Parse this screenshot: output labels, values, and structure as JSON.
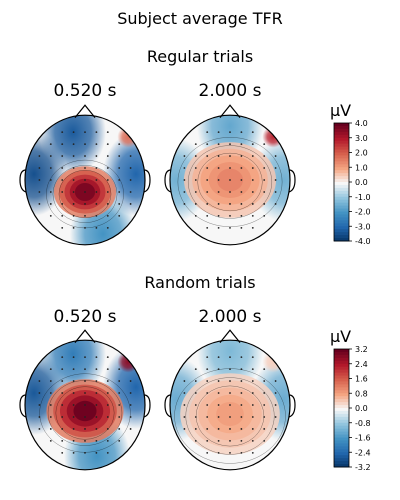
{
  "figure": {
    "title": "Subject average TFR"
  },
  "chart_data": [
    {
      "type": "heatmap",
      "subtitle": "Regular trials",
      "panels": [
        {
          "label": "0.520 s",
          "hot": {
            "x": 0.0,
            "y": 0.2,
            "r": 0.35,
            "v": 3.8
          },
          "cold": [
            {
              "x": -0.85,
              "y": -0.1,
              "v": -3.4
            },
            {
              "x": 0.85,
              "y": -0.1,
              "v": -3.0
            },
            {
              "x": -0.2,
              "y": -0.8,
              "v": -3.2
            },
            {
              "x": 0.3,
              "y": 0.9,
              "v": -2.0
            }
          ],
          "warm_right_front": 1.8
        },
        {
          "label": "2.000 s",
          "hot": {
            "x": 0.0,
            "y": 0.0,
            "r": 0.55,
            "v": 1.5
          },
          "cold": [
            {
              "x": -0.9,
              "y": 0.0,
              "v": -1.4
            },
            {
              "x": 0.9,
              "y": 0.0,
              "v": -1.4
            },
            {
              "x": 0.0,
              "y": -0.9,
              "v": -1.6
            }
          ],
          "warm_right_front": 2.8
        }
      ],
      "colorbar": {
        "unit": "µV",
        "vmin": -4.0,
        "vmax": 4.0,
        "ticks": [
          "4.0",
          "3.0",
          "2.0",
          "1.0",
          "0.0",
          "-1.0",
          "-2.0",
          "-3.0",
          "-4.0"
        ]
      }
    },
    {
      "type": "heatmap",
      "subtitle": "Random trials",
      "panels": [
        {
          "label": "0.520 s",
          "hot": {
            "x": 0.0,
            "y": 0.1,
            "r": 0.45,
            "v": 3.2
          },
          "cold": [
            {
              "x": -0.85,
              "y": -0.2,
              "v": -2.6
            },
            {
              "x": 0.85,
              "y": -0.3,
              "v": -2.4
            },
            {
              "x": -0.2,
              "y": -0.85,
              "v": -2.0
            },
            {
              "x": 0.2,
              "y": 0.85,
              "v": -1.6
            }
          ],
          "warm_right_front": 2.8
        },
        {
          "label": "2.000 s",
          "hot": {
            "x": 0.0,
            "y": 0.15,
            "r": 0.6,
            "v": 0.9
          },
          "cold": [
            {
              "x": -0.9,
              "y": -0.1,
              "v": -1.2
            },
            {
              "x": 0.9,
              "y": -0.1,
              "v": -1.2
            },
            {
              "x": 0.0,
              "y": -0.9,
              "v": -1.0
            }
          ],
          "warm_right_front": 0.4
        }
      ],
      "colorbar": {
        "unit": "µV",
        "vmin": -3.2,
        "vmax": 3.2,
        "ticks": [
          "3.2",
          "2.4",
          "1.6",
          "0.8",
          "0.0",
          "-0.8",
          "-1.6",
          "-2.4",
          "-3.2"
        ]
      }
    }
  ]
}
